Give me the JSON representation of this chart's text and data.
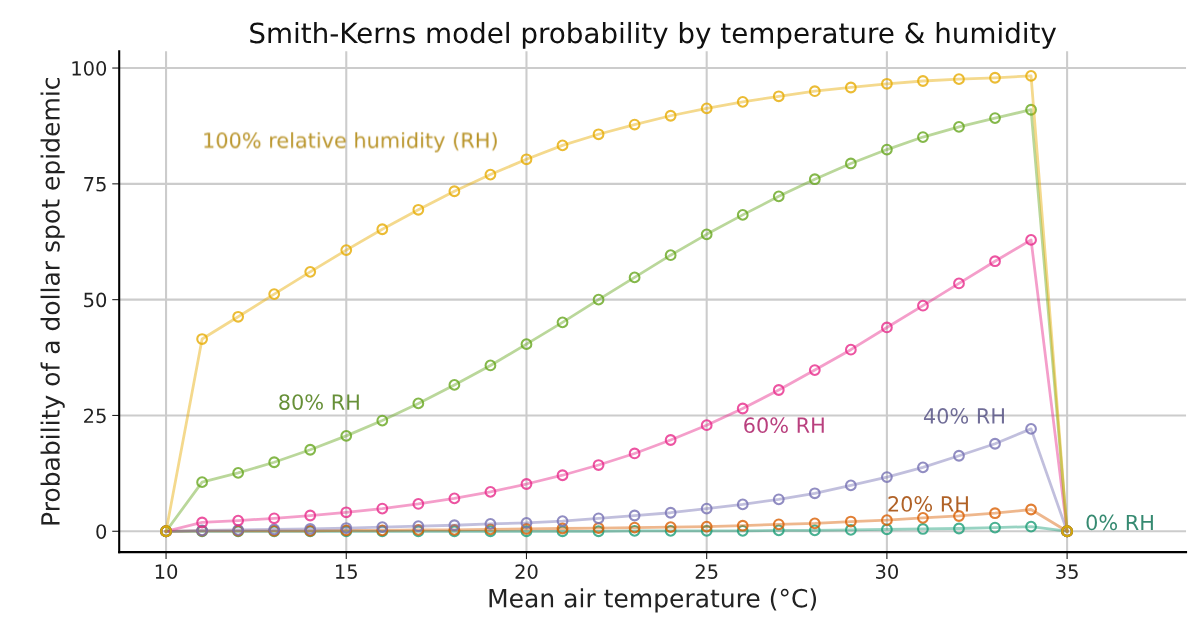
{
  "chart_data": {
    "type": "line",
    "title": "Smith-Kerns model probability by temperature & humidity",
    "xlabel": "Mean air temperature (°C)",
    "ylabel": "Probability of a dollar spot epidemic",
    "x": [
      10,
      11,
      12,
      13,
      14,
      15,
      16,
      17,
      18,
      19,
      20,
      21,
      22,
      23,
      24,
      25,
      26,
      27,
      28,
      29,
      30,
      31,
      32,
      33,
      34,
      35
    ],
    "series": [
      {
        "name": "100% relative humidity (RH)",
        "color": "#e6ab02",
        "values": [
          0,
          41.5,
          46.3,
          51.2,
          56,
          60.7,
          65.2,
          69.4,
          73.4,
          77,
          80.3,
          83.3,
          85.7,
          87.8,
          89.7,
          91.3,
          92.7,
          93.9,
          95,
          95.8,
          96.6,
          97.2,
          97.6,
          97.9,
          98.3,
          0
        ]
      },
      {
        "name": "80% RH",
        "color": "#66a61e",
        "values": [
          0,
          10.6,
          12.6,
          14.9,
          17.6,
          20.6,
          23.9,
          27.6,
          31.6,
          35.8,
          40.4,
          45.1,
          50,
          54.8,
          59.6,
          64.1,
          68.3,
          72.3,
          76,
          79.4,
          82.4,
          85.1,
          87.3,
          89.2,
          91,
          0
        ]
      },
      {
        "name": "60% RH",
        "color": "#e7298a",
        "values": [
          0,
          1.9,
          2.3,
          2.8,
          3.4,
          4.1,
          4.9,
          5.9,
          7.1,
          8.5,
          10.2,
          12.1,
          14.3,
          16.8,
          19.7,
          22.9,
          26.5,
          30.5,
          34.8,
          39.2,
          44,
          48.7,
          53.5,
          58.3,
          62.9,
          0
        ]
      },
      {
        "name": "40% RH",
        "color": "#7570b3",
        "values": [
          0,
          0.2,
          0.3,
          0.4,
          0.5,
          0.7,
          0.9,
          1.1,
          1.3,
          1.6,
          1.8,
          2.2,
          2.8,
          3.4,
          4.0,
          4.9,
          5.8,
          6.9,
          8.2,
          9.9,
          11.7,
          13.8,
          16.3,
          18.9,
          22.1,
          0
        ]
      },
      {
        "name": "20% RH",
        "color": "#d95f02",
        "values": [
          0,
          0.1,
          0.1,
          0.1,
          0.1,
          0.2,
          0.2,
          0.3,
          0.3,
          0.4,
          0.5,
          0.6,
          0.7,
          0.8,
          0.9,
          1.0,
          1.2,
          1.5,
          1.7,
          2.1,
          2.4,
          2.9,
          3.3,
          3.9,
          4.7,
          0
        ]
      },
      {
        "name": "0% RH",
        "color": "#1b9e77",
        "values": [
          0,
          0,
          0,
          0,
          0,
          0,
          0,
          0,
          0,
          0,
          0,
          0,
          0,
          0.1,
          0.1,
          0.1,
          0.1,
          0.2,
          0.2,
          0.3,
          0.4,
          0.5,
          0.6,
          0.8,
          1.0,
          0
        ]
      }
    ],
    "xlim": [
      8.7,
      38.3
    ],
    "ylim": [
      -4.5,
      103.6
    ],
    "xticks": [
      10,
      15,
      20,
      25,
      30,
      35
    ],
    "yticks": [
      0,
      25,
      50,
      75,
      100
    ],
    "grid": true,
    "marker": "circle",
    "line_style": "solid",
    "legend": false
  }
}
